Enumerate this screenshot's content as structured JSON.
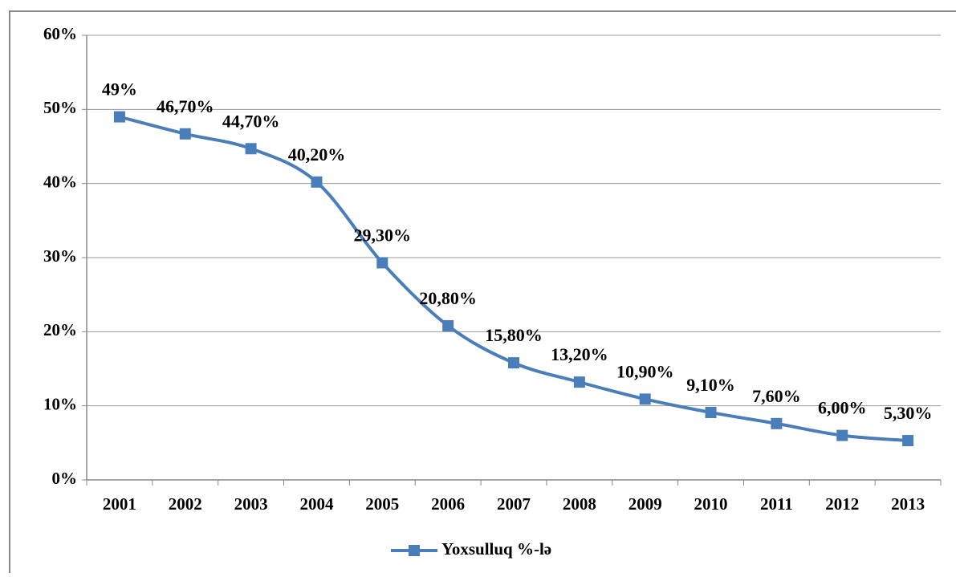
{
  "chart_data": {
    "type": "line",
    "categories": [
      "2001",
      "2002",
      "2003",
      "2004",
      "2005",
      "2006",
      "2007",
      "2008",
      "2009",
      "2010",
      "2011",
      "2012",
      "2013"
    ],
    "series": [
      {
        "name": "Yoxsulluq %-lə",
        "color": "#4a7ebb",
        "values": [
          49,
          46.7,
          44.7,
          40.2,
          29.3,
          20.8,
          15.8,
          13.2,
          10.9,
          9.1,
          7.6,
          6.0,
          5.3
        ],
        "value_labels": [
          "49%",
          "46,70%",
          "44,70%",
          "40,20%",
          "29,30%",
          "20,80%",
          "15,80%",
          "13,20%",
          "10,90%",
          "9,10%",
          "7,60%",
          "6,00%",
          "5,30%"
        ]
      }
    ],
    "ylim": [
      0,
      60
    ],
    "yticks": [
      {
        "value": 0,
        "label": "0%"
      },
      {
        "value": 10,
        "label": "10%"
      },
      {
        "value": 20,
        "label": "20%"
      },
      {
        "value": 30,
        "label": "30%"
      },
      {
        "value": 40,
        "label": "40%"
      },
      {
        "value": 50,
        "label": "50%"
      },
      {
        "value": 60,
        "label": "60%"
      }
    ],
    "grid": true,
    "legend": "bottom",
    "smooth": true
  }
}
